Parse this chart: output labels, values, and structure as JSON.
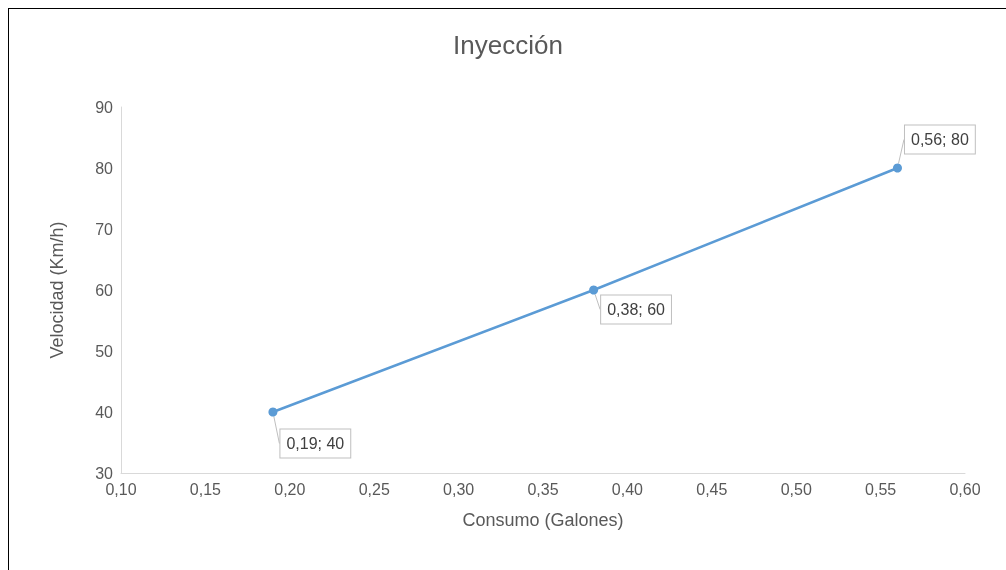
{
  "chart_data": {
    "type": "line",
    "title": "Inyección",
    "xlabel": "Consumo (Galones)",
    "ylabel": "Velocidad (Km/h)",
    "x": [
      0.19,
      0.38,
      0.56
    ],
    "series": [
      {
        "color": "#5b9bd5",
        "values": [
          40,
          60,
          80
        ],
        "value_labels": [
          "0,19; 40",
          "0,38; 60",
          "0,56; 80"
        ]
      }
    ],
    "xlim": [
      0.1,
      0.6
    ],
    "xticks": [
      {
        "value": 0.1,
        "label": "0,10"
      },
      {
        "value": 0.15,
        "label": "0,15"
      },
      {
        "value": 0.2,
        "label": "0,20"
      },
      {
        "value": 0.25,
        "label": "0,25"
      },
      {
        "value": 0.3,
        "label": "0,30"
      },
      {
        "value": 0.35,
        "label": "0,35"
      },
      {
        "value": 0.4,
        "label": "0,40"
      },
      {
        "value": 0.45,
        "label": "0,45"
      },
      {
        "value": 0.5,
        "label": "0,50"
      },
      {
        "value": 0.55,
        "label": "0,55"
      },
      {
        "value": 0.6,
        "label": "0,60"
      }
    ],
    "ylim": [
      30,
      90
    ],
    "yticks": [
      30,
      40,
      50,
      60,
      70,
      80,
      90
    ],
    "grid": false,
    "marker": "circle",
    "line_style": "solid"
  }
}
